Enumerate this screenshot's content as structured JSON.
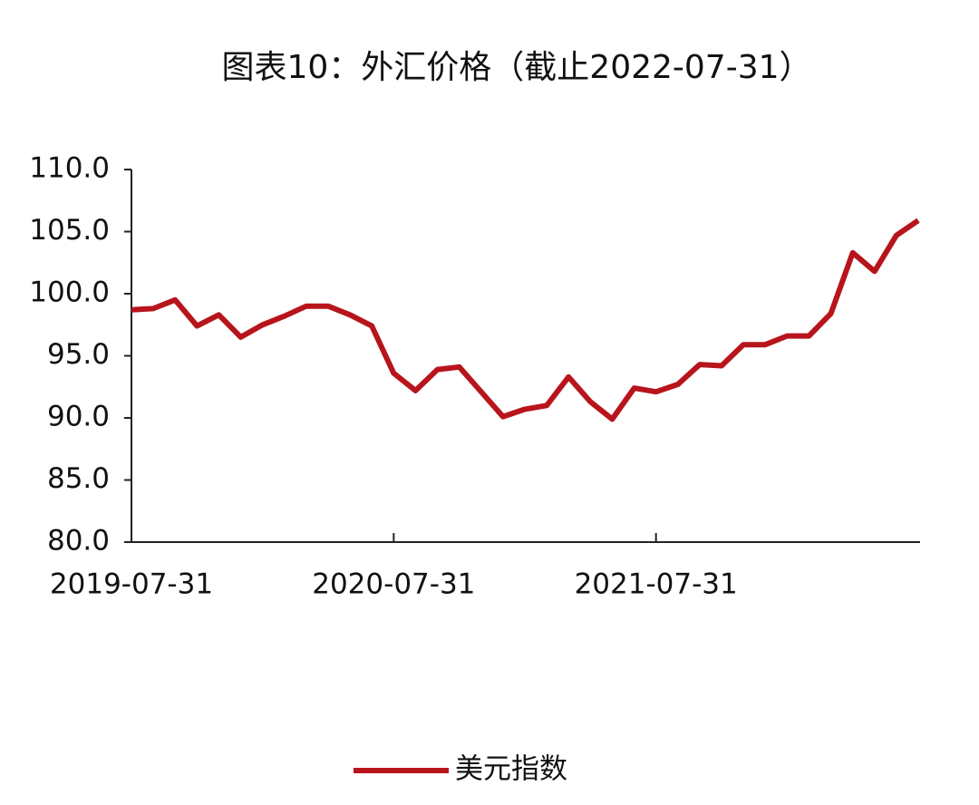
{
  "chart_data": {
    "type": "line",
    "title": "图表10：外汇价格（截止2022-07-31）",
    "categories": [
      "2019-07-31",
      null,
      null,
      null,
      null,
      null,
      null,
      null,
      null,
      null,
      null,
      null,
      "2020-07-31",
      null,
      null,
      null,
      null,
      null,
      null,
      null,
      null,
      null,
      null,
      null,
      "2021-07-31",
      null,
      null,
      null,
      null,
      null,
      null,
      null,
      null,
      null,
      null,
      null,
      null
    ],
    "series": [
      {
        "name": "美元指数",
        "color": "#b8141c",
        "values": [
          98.7,
          98.8,
          99.5,
          97.4,
          98.3,
          96.5,
          97.5,
          98.2,
          99.0,
          99.0,
          98.3,
          97.4,
          93.6,
          92.2,
          93.9,
          94.1,
          92.1,
          90.1,
          90.7,
          91.0,
          93.3,
          91.3,
          89.9,
          92.4,
          92.1,
          92.7,
          94.3,
          94.2,
          95.9,
          95.9,
          96.6,
          96.6,
          98.4,
          103.3,
          101.8,
          104.7,
          105.9
        ]
      }
    ],
    "ylim": [
      80,
      110
    ],
    "yticks": [
      {
        "value": 80,
        "label": "80.0"
      },
      {
        "value": 85,
        "label": "85.0"
      },
      {
        "value": 90,
        "label": "90.0"
      },
      {
        "value": 95,
        "label": "95.0"
      },
      {
        "value": 100,
        "label": "100.0"
      },
      {
        "value": 105,
        "label": "105.0"
      },
      {
        "value": 110,
        "label": "110.0"
      }
    ],
    "grid": false,
    "legend": "bottom"
  }
}
